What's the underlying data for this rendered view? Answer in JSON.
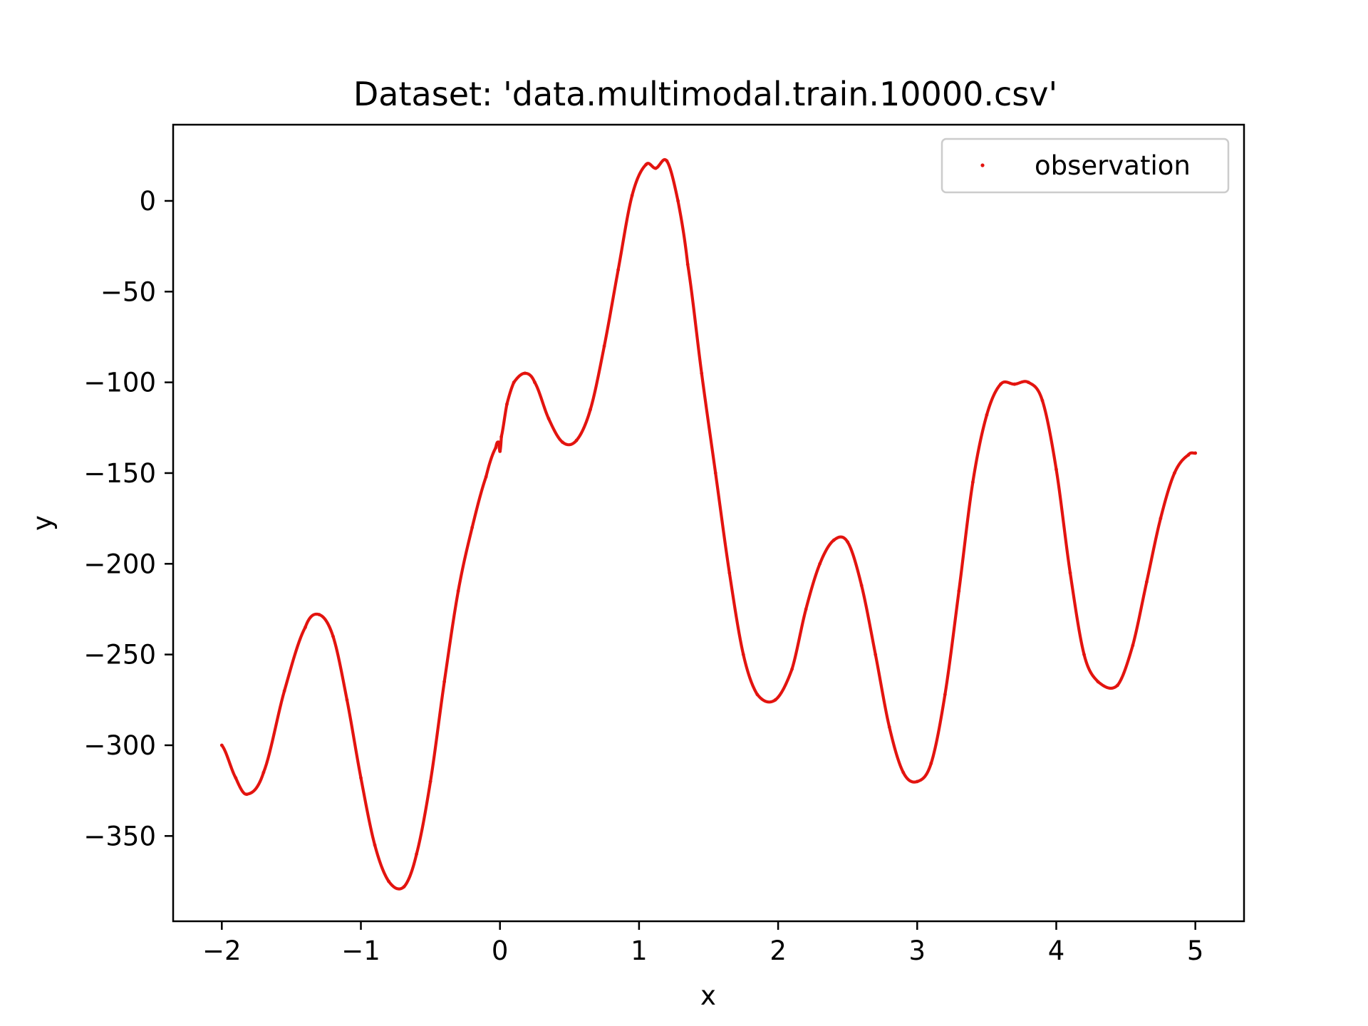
{
  "chart_data": {
    "type": "scatter",
    "title": "Dataset: 'data.multimodal.train.10000.csv'",
    "xlabel": "x",
    "ylabel": "y",
    "xlim": [
      -2.35,
      5.35
    ],
    "ylim": [
      -397,
      42
    ],
    "grid": false,
    "legend": {
      "placement": "top-right",
      "entries": [
        "observation"
      ]
    },
    "x_ticks": [
      -2,
      -1,
      0,
      1,
      2,
      3,
      4,
      5
    ],
    "x_tick_labels": [
      "−2",
      "−1",
      "0",
      "1",
      "2",
      "3",
      "4",
      "5"
    ],
    "y_ticks": [
      0,
      -50,
      -100,
      -150,
      -200,
      -250,
      -300,
      -350
    ],
    "y_tick_labels": [
      "0",
      "−50",
      "−100",
      "−150",
      "−200",
      "−250",
      "−300",
      "−350"
    ],
    "series": [
      {
        "name": "observation",
        "color": "#e3140f",
        "marker": "point",
        "x": [
          -2.0,
          -1.9,
          -1.82,
          -1.7,
          -1.55,
          -1.4,
          -1.3,
          -1.2,
          -1.1,
          -1.0,
          -0.9,
          -0.8,
          -0.69,
          -0.6,
          -0.5,
          -0.4,
          -0.3,
          -0.2,
          -0.1,
          -0.03,
          -0.01,
          0.0,
          0.01,
          0.05,
          0.1,
          0.18,
          0.25,
          0.35,
          0.45,
          0.55,
          0.65,
          0.75,
          0.85,
          0.95,
          1.05,
          1.12,
          1.2,
          1.28,
          1.35,
          1.45,
          1.55,
          1.65,
          1.75,
          1.85,
          1.98,
          2.1,
          2.2,
          2.3,
          2.4,
          2.5,
          2.6,
          2.7,
          2.8,
          2.9,
          3.0,
          3.1,
          3.2,
          3.3,
          3.4,
          3.5,
          3.6,
          3.7,
          3.8,
          3.9,
          4.0,
          4.1,
          4.2,
          4.3,
          4.44,
          4.55,
          4.65,
          4.75,
          4.85,
          4.95,
          5.0
        ],
        "y": [
          -300,
          -318,
          -327,
          -315,
          -270,
          -235,
          -228,
          -240,
          -275,
          -318,
          -355,
          -375,
          -378,
          -360,
          -320,
          -265,
          -215,
          -180,
          -152,
          -136,
          -133,
          -138,
          -130,
          -112,
          -100,
          -95,
          -100,
          -120,
          -133,
          -132,
          -115,
          -80,
          -38,
          3,
          20,
          18,
          22,
          0,
          -35,
          -95,
          -150,
          -205,
          -250,
          -272,
          -275,
          -258,
          -225,
          -200,
          -187,
          -188,
          -212,
          -250,
          -290,
          -315,
          -320,
          -310,
          -272,
          -215,
          -155,
          -118,
          -101,
          -101,
          -100,
          -110,
          -148,
          -205,
          -250,
          -265,
          -267,
          -245,
          -210,
          -175,
          -150,
          -140,
          -139
        ]
      }
    ]
  }
}
